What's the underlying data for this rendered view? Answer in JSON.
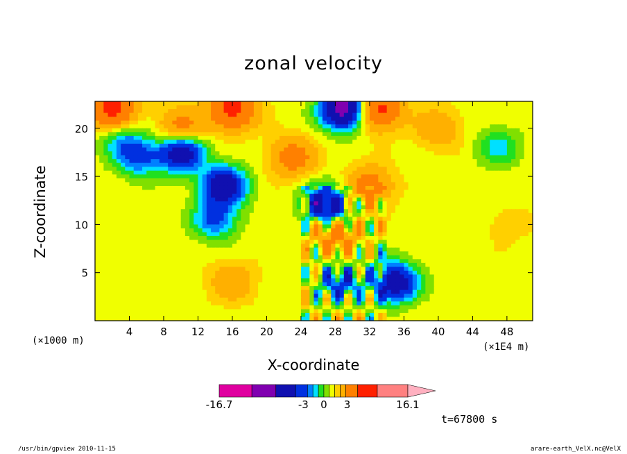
{
  "chart_data": {
    "type": "heatmap",
    "title": "zonal velocity",
    "xlabel": "X-coordinate",
    "ylabel": "Z-coordinate",
    "x_unit_left": "(×1000 m)",
    "x_unit_right": "(×1E4 m)",
    "x_ticks": [
      "4",
      "8",
      "12",
      "16",
      "20",
      "24",
      "28",
      "32",
      "36",
      "40",
      "44",
      "48"
    ],
    "x_tick_values": [
      4,
      8,
      12,
      16,
      20,
      24,
      28,
      32,
      36,
      40,
      44,
      48
    ],
    "y_ticks": [
      "5",
      "10",
      "15",
      "20"
    ],
    "y_tick_values": [
      5,
      10,
      15,
      20
    ],
    "xlim": [
      0,
      51
    ],
    "ylim": [
      0,
      22.8
    ],
    "colorbar": {
      "min_label": "-16.7",
      "max_label": "16.1",
      "mid_labels": [
        "-3",
        "0",
        "3"
      ],
      "levels": [
        -16.7,
        -13,
        -9,
        -5,
        -3,
        -2,
        -1,
        0,
        1,
        2,
        3,
        5,
        9,
        13,
        16.1
      ],
      "colors": [
        "#e000a0",
        "#8000b0",
        "#1010b0",
        "#0030e0",
        "#0080ff",
        "#00e0ff",
        "#20e020",
        "#80e000",
        "#f0ff00",
        "#ffd000",
        "#ffb000",
        "#ff8000",
        "#ff2000",
        "#ff8080",
        "#ffb0c0"
      ]
    },
    "field_features": [
      {
        "x": 5,
        "z": 17,
        "value": -5
      },
      {
        "x": 10,
        "z": 17.5,
        "value": -9
      },
      {
        "x": 15,
        "z": 14,
        "value": -9
      },
      {
        "x": 14,
        "z": 10.5,
        "value": -5
      },
      {
        "x": 3,
        "z": 19,
        "value": -3
      },
      {
        "x": 29,
        "z": 22,
        "value": -13
      },
      {
        "x": 32,
        "z": 14,
        "value": 5
      },
      {
        "x": 28,
        "z": 9,
        "value": 5
      },
      {
        "x": 23,
        "z": 17,
        "value": 5
      },
      {
        "x": 35,
        "z": 4,
        "value": -9
      },
      {
        "x": 28.5,
        "z": 4,
        "value": -5
      },
      {
        "x": 27,
        "z": 12,
        "value": -9
      },
      {
        "x": 16,
        "z": 4,
        "value": 3
      },
      {
        "x": 10,
        "z": 20,
        "value": 5
      },
      {
        "x": 40,
        "z": 20,
        "value": 3
      },
      {
        "x": 47,
        "z": 18,
        "value": -3
      },
      {
        "x": 48,
        "z": 10,
        "value": 1
      },
      {
        "x": 2,
        "z": 22,
        "value": 9
      },
      {
        "x": 16,
        "z": 22,
        "value": 9
      },
      {
        "x": 33,
        "z": 22,
        "value": 9
      }
    ]
  },
  "timestamp": "t=67800 s",
  "footer_left": "/usr/bin/gpview   2010-11-15",
  "footer_right": "arare-earth_VelX.nc@VelX"
}
